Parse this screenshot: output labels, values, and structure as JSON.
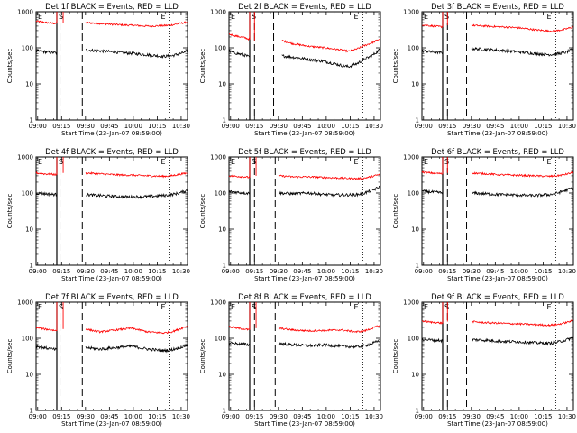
{
  "chart_data": {
    "type": "line",
    "y_scale": "log",
    "ylim": [
      1,
      1000
    ],
    "y_tick_labels": [
      "1",
      "10",
      "100",
      "1000"
    ],
    "ylabel": "Counts/sec",
    "x_tick_labels": [
      "09:00",
      "09:15",
      "09:30",
      "09:45",
      "10:00",
      "10:15",
      "10:30"
    ],
    "x_range_minutes": [
      0,
      95
    ],
    "xlabel": "Start Time (23-Jan-07 08:59:00)",
    "markers": [
      "E",
      "S",
      "E"
    ],
    "series_colors": {
      "events": "#000000",
      "lld": "#ff0000"
    },
    "panels": [
      {
        "title": "Det 1f BLACK = Events, RED = LLD",
        "gap": [
          13,
          17
        ],
        "lines_solid": [
          13
        ],
        "lines_dashed": [
          15,
          29
        ],
        "lines_dotted": [
          84
        ],
        "lld": {
          "x": [
            0,
            5,
            10,
            13,
            17,
            22,
            29,
            31,
            40,
            50,
            60,
            70,
            80,
            85,
            90,
            95
          ],
          "y": [
            550,
            510,
            480,
            470,
            0,
            0,
            0,
            500,
            470,
            440,
            420,
            400,
            410,
            430,
            470,
            520
          ]
        },
        "events": {
          "x": [
            0,
            5,
            10,
            13,
            17,
            22,
            29,
            31,
            40,
            50,
            60,
            70,
            80,
            85,
            90,
            95
          ],
          "y": [
            82,
            78,
            74,
            72,
            0,
            0,
            0,
            88,
            82,
            76,
            70,
            64,
            58,
            60,
            68,
            80
          ]
        }
      },
      {
        "title": "Det 2f BLACK = Events, RED = LLD",
        "gap": [
          13,
          16
        ],
        "lines_solid": [
          13
        ],
        "lines_dashed": [
          16,
          28
        ],
        "lines_dotted": [
          84
        ],
        "lld": {
          "x": [
            0,
            5,
            10,
            13,
            16,
            22,
            28,
            33,
            40,
            50,
            60,
            70,
            75,
            80,
            85,
            90,
            95
          ],
          "y": [
            240,
            210,
            190,
            170,
            0,
            0,
            0,
            160,
            130,
            110,
            100,
            88,
            80,
            92,
            115,
            140,
            180
          ]
        },
        "events": {
          "x": [
            0,
            5,
            10,
            13,
            16,
            22,
            28,
            33,
            40,
            50,
            60,
            70,
            75,
            80,
            85,
            90,
            95
          ],
          "y": [
            80,
            70,
            62,
            55,
            0,
            0,
            0,
            60,
            55,
            48,
            42,
            33,
            30,
            36,
            48,
            62,
            92
          ]
        }
      },
      {
        "title": "Det 3f BLACK = Events, RED = LLD",
        "gap": [
          13,
          16
        ],
        "lines_solid": [
          13
        ],
        "lines_dashed": [
          16,
          28
        ],
        "lines_dotted": [
          84
        ],
        "lld": {
          "x": [
            0,
            5,
            10,
            13,
            16,
            22,
            28,
            31,
            40,
            50,
            60,
            70,
            80,
            85,
            90,
            95
          ],
          "y": [
            440,
            410,
            390,
            380,
            0,
            0,
            0,
            420,
            400,
            380,
            360,
            320,
            290,
            300,
            330,
            380
          ]
        },
        "events": {
          "x": [
            0,
            5,
            10,
            13,
            16,
            22,
            28,
            31,
            40,
            50,
            60,
            70,
            80,
            85,
            90,
            95
          ],
          "y": [
            82,
            78,
            75,
            72,
            0,
            0,
            0,
            95,
            90,
            85,
            78,
            70,
            65,
            68,
            75,
            90
          ]
        }
      },
      {
        "title": "Det 4f BLACK = Events, RED = LLD",
        "gap": [
          13,
          17
        ],
        "lines_solid": [
          13
        ],
        "lines_dashed": [
          15,
          29
        ],
        "lines_dotted": [
          84
        ],
        "lld": {
          "x": [
            0,
            5,
            10,
            13,
            17,
            22,
            29,
            31,
            40,
            50,
            60,
            70,
            80,
            85,
            90,
            95
          ],
          "y": [
            360,
            340,
            330,
            320,
            0,
            0,
            0,
            360,
            340,
            320,
            310,
            300,
            290,
            300,
            330,
            360
          ]
        },
        "events": {
          "x": [
            0,
            5,
            10,
            13,
            17,
            22,
            29,
            31,
            40,
            50,
            60,
            70,
            80,
            85,
            90,
            95
          ],
          "y": [
            100,
            96,
            92,
            90,
            0,
            0,
            0,
            90,
            85,
            80,
            78,
            80,
            85,
            90,
            100,
            120
          ]
        }
      },
      {
        "title": "Det 5f BLACK = Events, RED = LLD",
        "gap": [
          13,
          17
        ],
        "lines_solid": [
          13
        ],
        "lines_dashed": [
          16,
          29
        ],
        "lines_dotted": [
          84
        ],
        "lld": {
          "x": [
            0,
            5,
            10,
            13,
            17,
            22,
            29,
            31,
            40,
            50,
            60,
            70,
            80,
            85,
            90,
            95
          ],
          "y": [
            300,
            290,
            280,
            270,
            0,
            0,
            0,
            300,
            280,
            280,
            270,
            260,
            250,
            260,
            290,
            330
          ]
        },
        "events": {
          "x": [
            0,
            5,
            10,
            13,
            17,
            22,
            29,
            31,
            40,
            50,
            60,
            70,
            80,
            85,
            90,
            95
          ],
          "y": [
            110,
            105,
            100,
            98,
            0,
            0,
            0,
            100,
            95,
            100,
            90,
            88,
            90,
            100,
            120,
            150
          ]
        }
      },
      {
        "title": "Det 6f BLACK = Events, RED = LLD",
        "gap": [
          13,
          16
        ],
        "lines_solid": [
          13
        ],
        "lines_dashed": [
          16,
          28
        ],
        "lines_dotted": [
          84
        ],
        "lld": {
          "x": [
            0,
            5,
            10,
            13,
            16,
            22,
            28,
            31,
            40,
            50,
            60,
            70,
            80,
            85,
            90,
            95
          ],
          "y": [
            380,
            360,
            350,
            340,
            0,
            0,
            0,
            360,
            340,
            320,
            310,
            300,
            290,
            300,
            330,
            370
          ]
        },
        "events": {
          "x": [
            0,
            5,
            10,
            13,
            16,
            22,
            28,
            31,
            40,
            50,
            60,
            70,
            80,
            85,
            90,
            95
          ],
          "y": [
            112,
            108,
            104,
            100,
            0,
            0,
            0,
            100,
            95,
            90,
            88,
            85,
            90,
            100,
            118,
            140
          ]
        }
      },
      {
        "title": "Det 7f BLACK = Events, RED = LLD",
        "gap": [
          13,
          17
        ],
        "lines_solid": [
          13
        ],
        "lines_dashed": [
          15,
          29
        ],
        "lines_dotted": [
          84
        ],
        "lld": {
          "x": [
            0,
            5,
            10,
            13,
            17,
            22,
            29,
            31,
            40,
            50,
            60,
            70,
            80,
            85,
            90,
            95
          ],
          "y": [
            200,
            180,
            170,
            160,
            0,
            0,
            0,
            180,
            150,
            170,
            190,
            150,
            140,
            150,
            180,
            220
          ]
        },
        "events": {
          "x": [
            0,
            5,
            10,
            13,
            17,
            22,
            29,
            31,
            40,
            50,
            60,
            70,
            80,
            85,
            90,
            95
          ],
          "y": [
            60,
            55,
            50,
            48,
            0,
            0,
            0,
            55,
            50,
            55,
            60,
            50,
            45,
            48,
            55,
            65
          ]
        }
      },
      {
        "title": "Det 8f BLACK = Events, RED = LLD",
        "gap": [
          13,
          17
        ],
        "lines_solid": [
          13
        ],
        "lines_dashed": [
          16,
          29
        ],
        "lines_dotted": [
          84
        ],
        "lld": {
          "x": [
            0,
            5,
            10,
            13,
            17,
            22,
            29,
            31,
            40,
            50,
            60,
            70,
            80,
            85,
            90,
            95
          ],
          "y": [
            210,
            190,
            180,
            170,
            0,
            0,
            0,
            190,
            170,
            160,
            165,
            170,
            150,
            160,
            190,
            230
          ]
        },
        "events": {
          "x": [
            0,
            5,
            10,
            13,
            17,
            22,
            29,
            31,
            40,
            50,
            60,
            70,
            80,
            85,
            90,
            95
          ],
          "y": [
            75,
            70,
            68,
            65,
            0,
            0,
            0,
            72,
            66,
            62,
            65,
            60,
            58,
            62,
            72,
            88
          ]
        }
      },
      {
        "title": "Det 9f BLACK = Events, RED = LLD",
        "gap": [
          13,
          16
        ],
        "lines_solid": [
          13
        ],
        "lines_dashed": [
          16,
          28
        ],
        "lines_dotted": [
          84
        ],
        "lld": {
          "x": [
            0,
            5,
            10,
            13,
            16,
            22,
            28,
            31,
            40,
            50,
            60,
            70,
            80,
            85,
            90,
            95
          ],
          "y": [
            300,
            280,
            270,
            260,
            0,
            0,
            0,
            290,
            270,
            260,
            250,
            240,
            230,
            240,
            270,
            310
          ]
        },
        "events": {
          "x": [
            0,
            5,
            10,
            13,
            16,
            22,
            28,
            31,
            40,
            50,
            60,
            70,
            80,
            85,
            90,
            95
          ],
          "y": [
            95,
            90,
            88,
            85,
            0,
            0,
            0,
            92,
            88,
            82,
            80,
            75,
            72,
            78,
            88,
            105
          ]
        }
      }
    ]
  }
}
